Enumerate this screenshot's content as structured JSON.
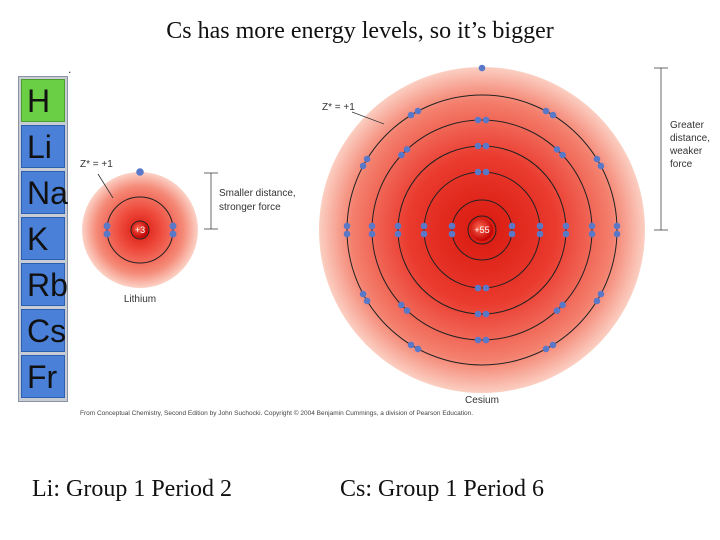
{
  "title": "Cs has more energy levels, so it’s bigger",
  "side_mark": ".",
  "group1_elements": [
    "H",
    "Li",
    "Na",
    "K",
    "Rb",
    "Cs",
    "Fr"
  ],
  "lithium": {
    "zeff": "Z* = +1",
    "nucleus": "+3",
    "name": "Lithium",
    "distance_label": [
      "Smaller distance,",
      "stronger force"
    ]
  },
  "cesium": {
    "zeff": "Z* = +1",
    "nucleus": "+55",
    "name": "Cesium",
    "distance_label": [
      "Greater",
      "distance,",
      "weaker",
      "force"
    ]
  },
  "credit": "From Conceptual Chemistry, Second Edition by John Suchocki. Copyright © 2004 Benjamin Cummings, a division of Pearson Education.",
  "captions": {
    "left": "Li:  Group 1 Period 2",
    "right": "Cs:  Group 1 Period 6"
  },
  "colors": {
    "hydrogen": "#6bcf45",
    "alkali": "#4a80d8",
    "cloud": "#e8342a",
    "electron": "#5a78c8"
  }
}
